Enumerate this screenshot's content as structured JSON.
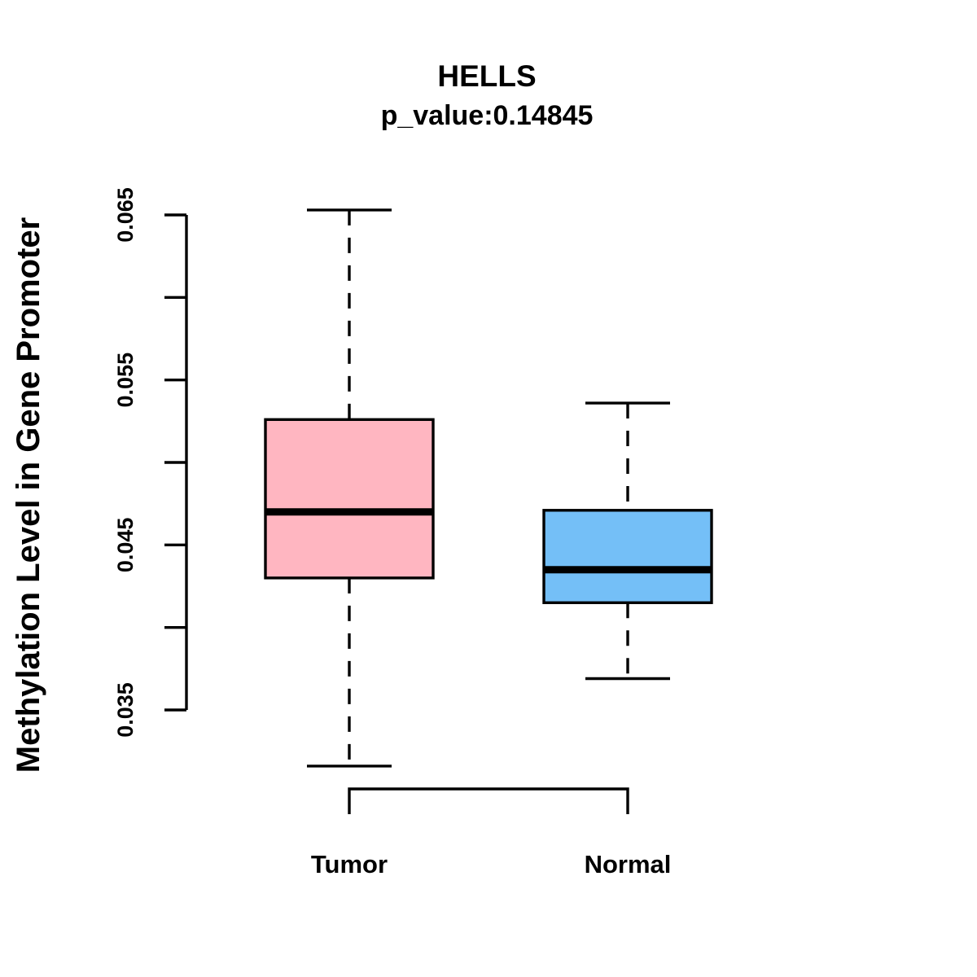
{
  "chart_data": {
    "type": "boxplot",
    "title": "HELLS",
    "subtitle": "p_value:0.14845",
    "ylabel": "Methylation Level in Gene Promoter",
    "xlabel": "",
    "categories": [
      "Tumor",
      "Normal"
    ],
    "series": [
      {
        "name": "Tumor",
        "fill": "#FFB6C1",
        "lower_whisker": 0.0316,
        "q1": 0.043,
        "median": 0.047,
        "q3": 0.0526,
        "upper_whisker": 0.0653
      },
      {
        "name": "Normal",
        "fill": "#74BFF7",
        "lower_whisker": 0.0369,
        "q1": 0.0415,
        "median": 0.0435,
        "q3": 0.0471,
        "upper_whisker": 0.0536
      }
    ],
    "y_axis": {
      "min": 0.035,
      "max": 0.065,
      "tick_step": 0.005,
      "label_ticks": [
        0.065,
        0.055,
        0.045,
        0.035
      ],
      "tick_labels": [
        "0.065",
        "0.055",
        "0.045",
        "0.035"
      ]
    },
    "grid": false,
    "legend": "none",
    "line_color": "#000000",
    "background": "#FFFFFF"
  }
}
